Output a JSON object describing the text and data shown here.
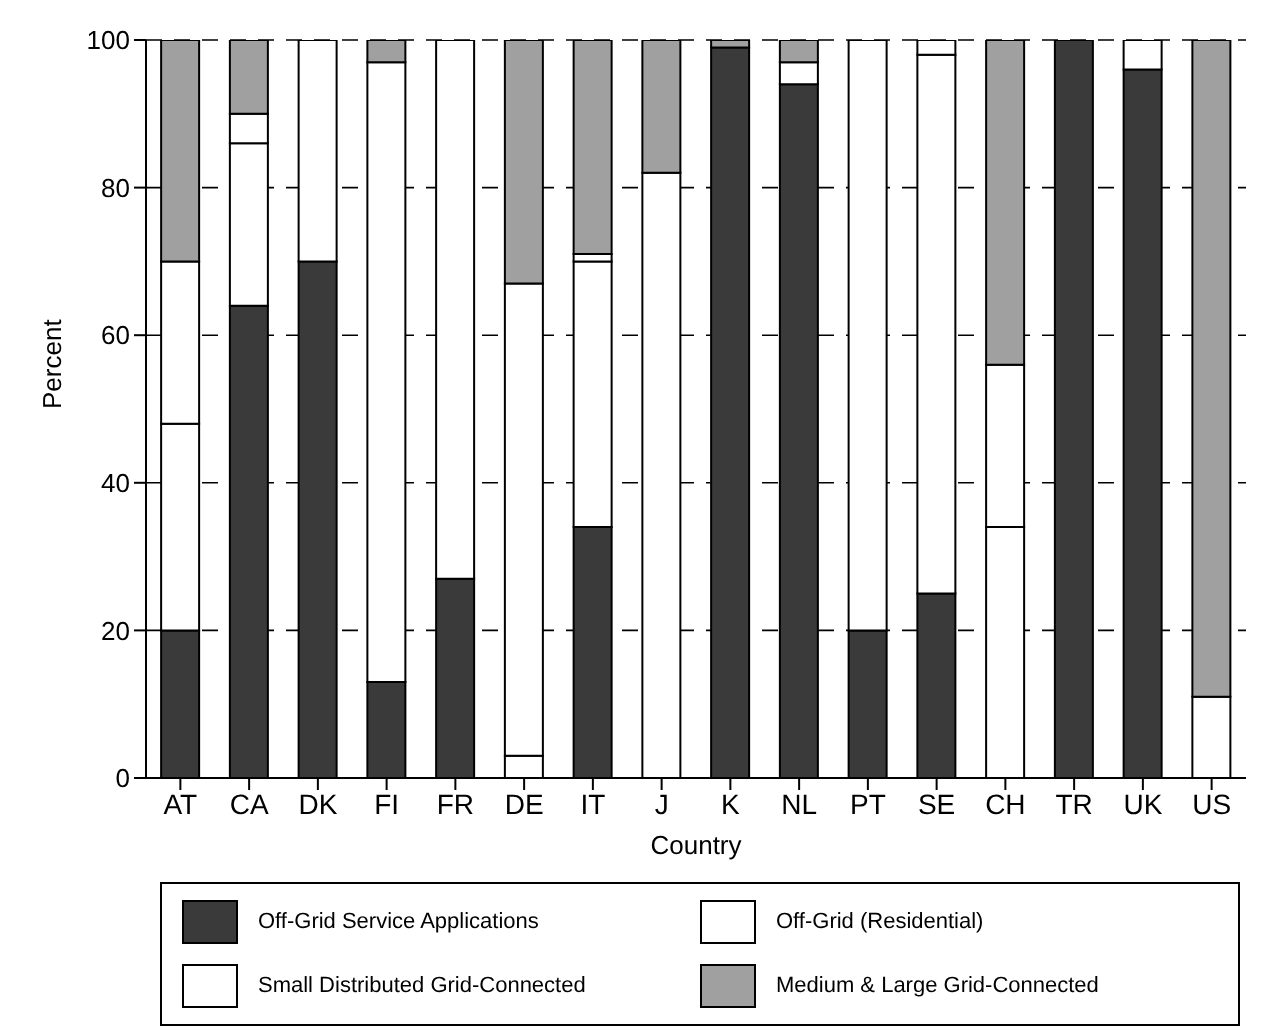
{
  "chart_data": {
    "type": "bar",
    "stacked": true,
    "xlabel": "Country",
    "ylabel": "Percent",
    "categories": [
      "AT",
      "CA",
      "DK",
      "FI",
      "FR",
      "DE",
      "IT",
      "J",
      "K",
      "NL",
      "PT",
      "SE",
      "CH",
      "TR",
      "UK",
      "US"
    ],
    "series": [
      {
        "name": "Off-Grid Service Applications",
        "color": "#3a3a3a",
        "values": [
          20,
          64,
          70,
          13,
          27,
          0,
          34,
          0,
          99,
          94,
          20,
          25,
          0,
          100,
          96,
          0
        ]
      },
      {
        "name": "Off-Grid (Residential)",
        "color": "#ffffff",
        "values": [
          28,
          22,
          30,
          84,
          73,
          3,
          36,
          0,
          0,
          3,
          80,
          73,
          34,
          0,
          0,
          11
        ]
      },
      {
        "name": "Small Distributed Grid-Connected",
        "color": "#ffffff",
        "values": [
          22,
          4,
          0,
          0,
          0,
          64,
          1,
          82,
          0,
          0,
          0,
          2,
          22,
          0,
          4,
          0
        ]
      },
      {
        "name": "Medium & Large Grid-Connected",
        "color": "#a0a0a0",
        "values": [
          30,
          10,
          0,
          3,
          0,
          33,
          29,
          18,
          1,
          3,
          0,
          0,
          44,
          0,
          0,
          89
        ]
      }
    ],
    "ylim": [
      0,
      100
    ],
    "yticks": [
      0,
      20,
      40,
      60,
      80,
      100
    ],
    "grid": "y",
    "legend": "bottom"
  }
}
